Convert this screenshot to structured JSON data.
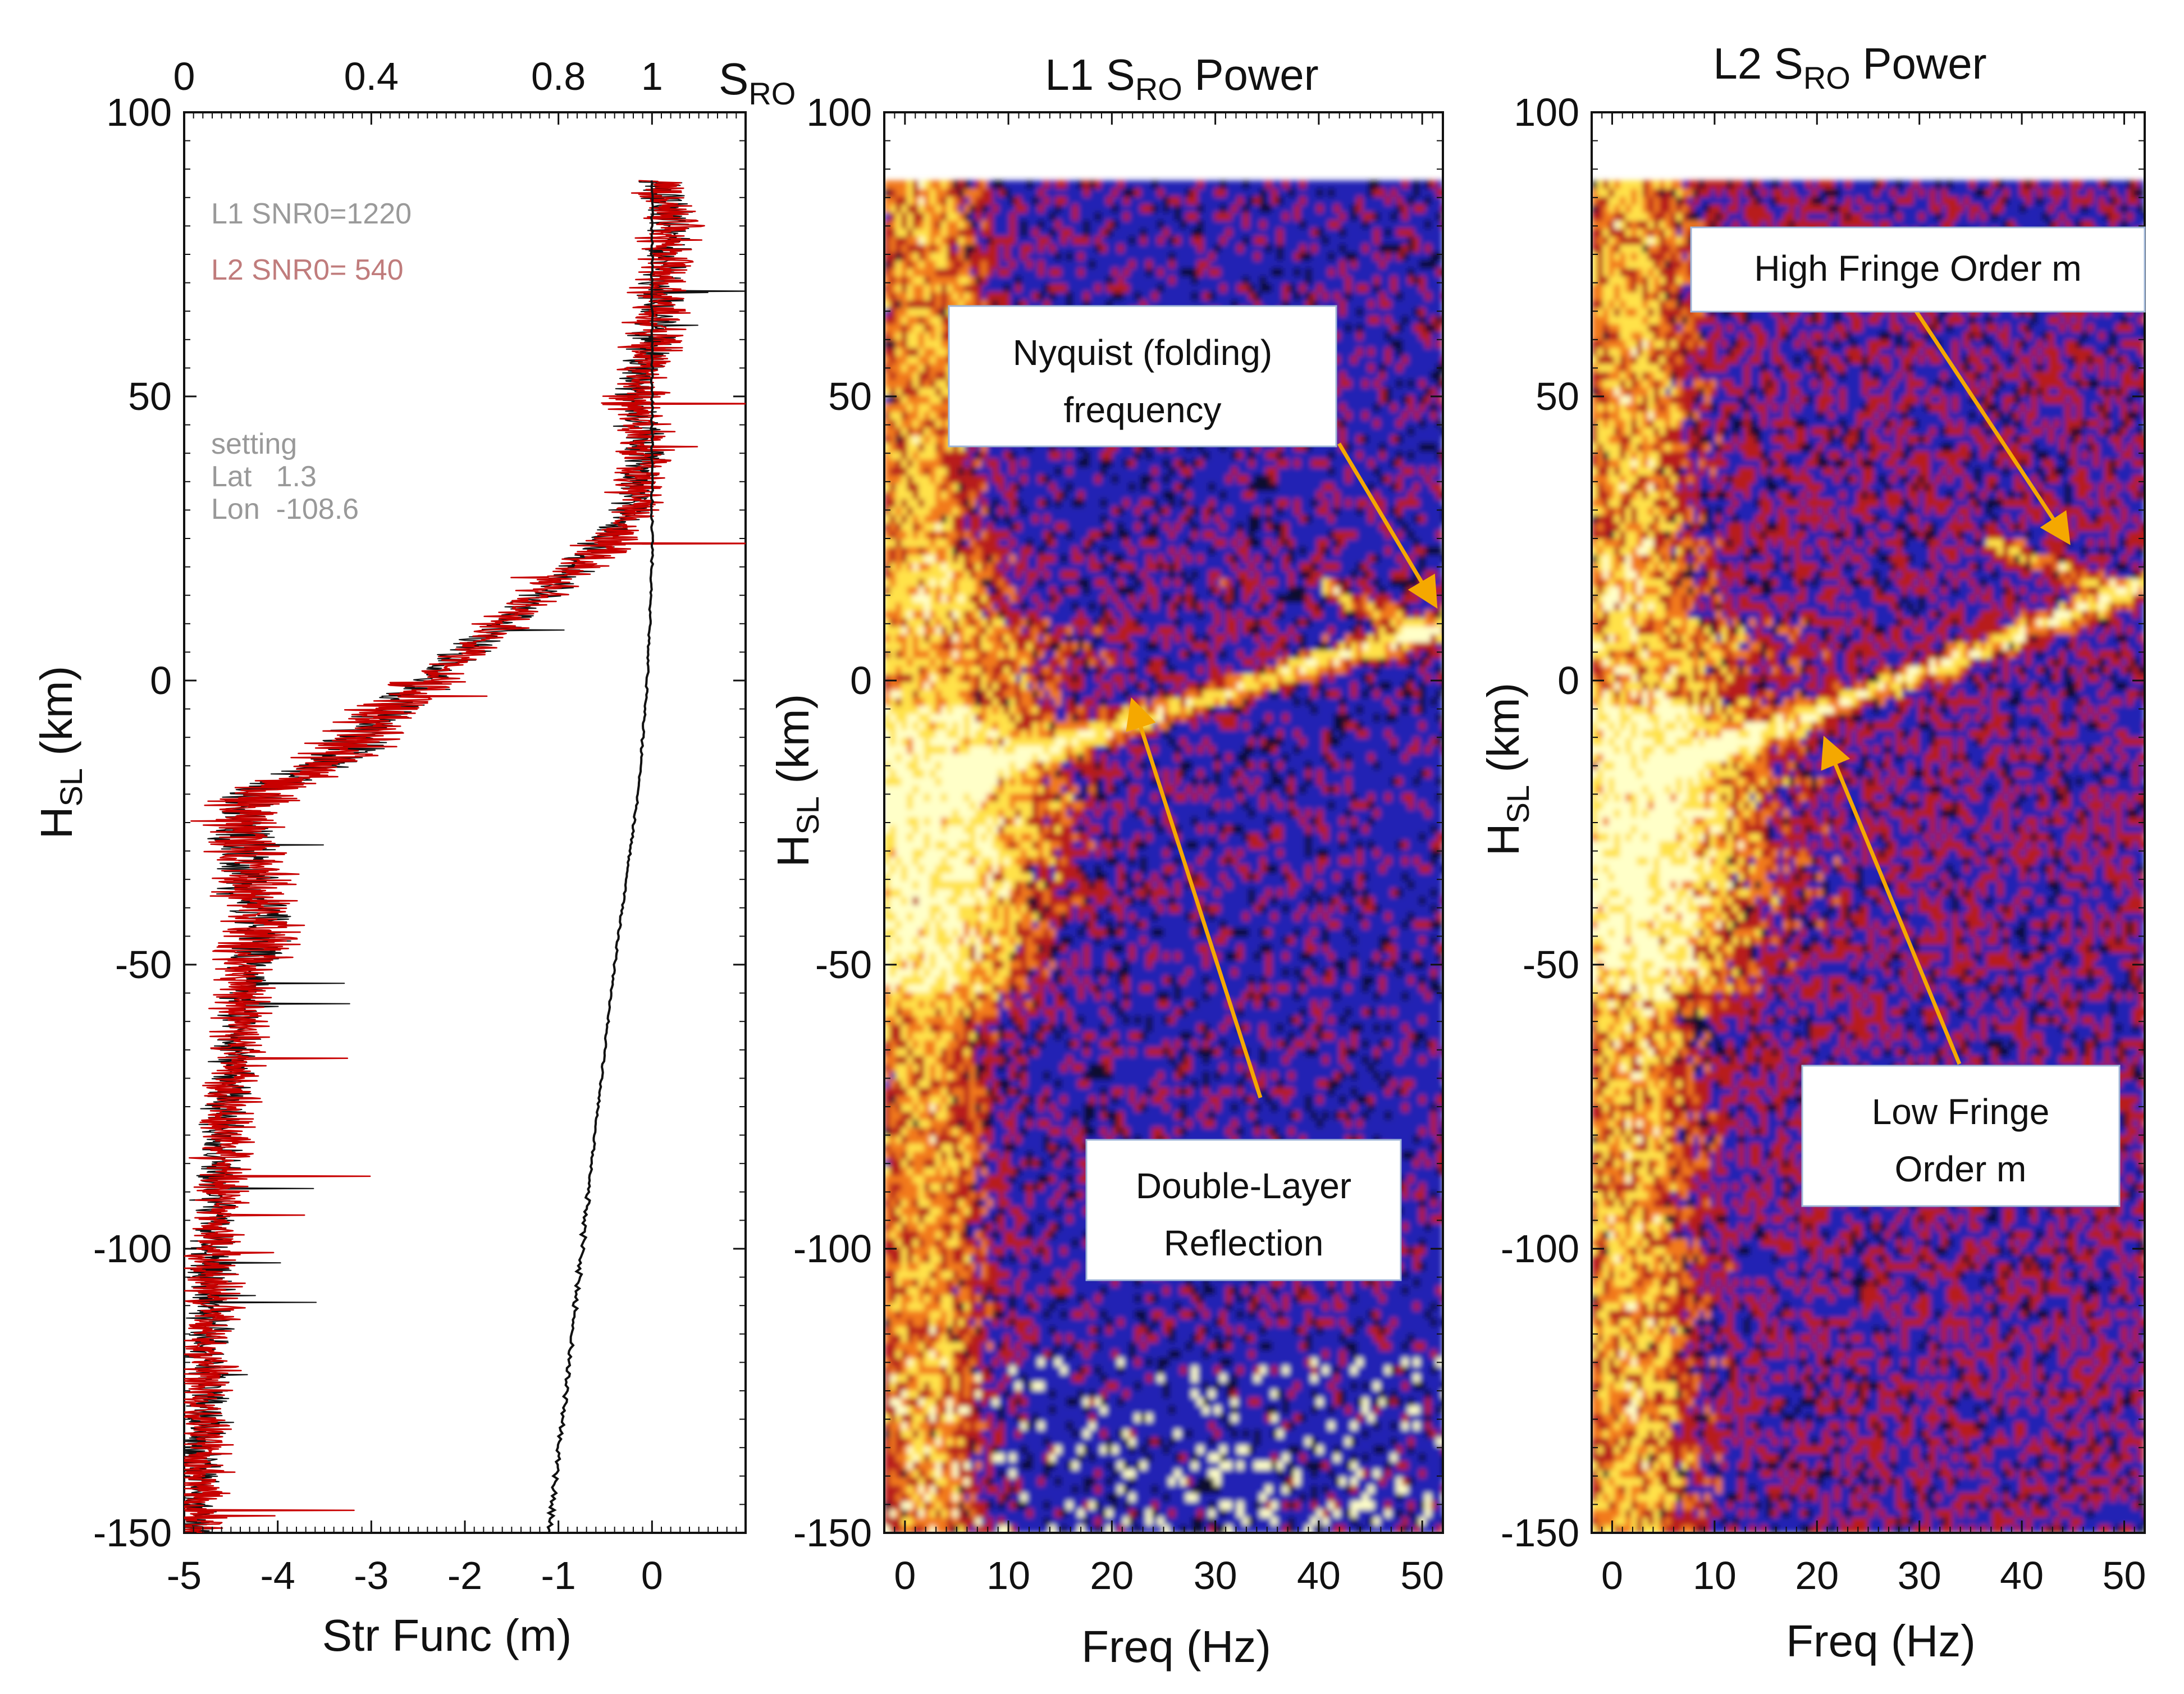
{
  "chart_data": [
    {
      "type": "line",
      "panel": "structure-function",
      "title": "",
      "xlabel": "Str Func (m)",
      "ylabel": "H_SL (km)",
      "ylabel_main": "H",
      "ylabel_sub": "SL",
      "ylabel_unit": " (km)",
      "xlim": [
        -5,
        1
      ],
      "ylim": [
        -150,
        100
      ],
      "xticks": [
        "-5",
        "-4",
        "-3",
        "-2",
        "-1",
        "0"
      ],
      "yticks": [
        "100",
        "50",
        "0",
        "-50",
        "-100",
        "-150"
      ],
      "top_axis": {
        "label_main": "S",
        "label_sub": "RO",
        "lim": [
          0,
          1.2
        ],
        "ticks": [
          "0",
          "0.4",
          "0.8",
          "1"
        ]
      },
      "legend": [
        "L1 SNR0=1220",
        "L2 SNR0= 540"
      ],
      "info_text": [
        "setting",
        "Lat   1.3",
        "Lon  -108.6"
      ],
      "series": [
        {
          "name": "L2 structure function",
          "color": "#c80000",
          "mean_profile": {
            "h": [
              -150,
              -140,
              -130,
              -120,
              -100,
              -80,
              -70,
              -60,
              -50,
              -45,
              -35,
              -25,
              -20,
              -15,
              -5,
              0,
              5,
              10,
              15,
              20,
              25,
              30,
              40,
              50,
              60,
              70,
              80,
              88
            ],
            "x": [
              -4.9,
              -4.85,
              -4.8,
              -4.75,
              -4.7,
              -4.6,
              -4.5,
              -4.4,
              -4.35,
              -4.2,
              -4.3,
              -4.4,
              -4.3,
              -3.5,
              -2.8,
              -2.4,
              -2.0,
              -1.6,
              -1.2,
              -0.8,
              -0.5,
              -0.2,
              -0.1,
              -0.2,
              0.0,
              0.1,
              0.2,
              0.1
            ]
          }
        },
        {
          "name": "L1 structure function",
          "color": "#111111",
          "mean_profile": "same as L2"
        },
        {
          "name": "S_RO",
          "color": "#111111",
          "axis": "top",
          "h": [
            -150,
            -100,
            -50,
            -20,
            0,
            20,
            40,
            88
          ],
          "s": [
            0.78,
            0.85,
            0.92,
            0.97,
            0.99,
            1.0,
            1.0,
            1.0
          ]
        }
      ]
    },
    {
      "type": "heatmap",
      "panel": "L1",
      "title": "L1 S_RO Power",
      "title_main": "L1 S",
      "title_sub": "RO",
      "title_tail": " Power",
      "xlabel": "Freq (Hz)",
      "ylabel": "H_SL (km)",
      "ylabel_main": "H",
      "ylabel_sub": "SL",
      "ylabel_unit": " (km)",
      "xlim": [
        -2,
        52
      ],
      "ylim": [
        -150,
        100
      ],
      "data_ylim": [
        -150,
        88
      ],
      "xticks": [
        "0",
        "10",
        "20",
        "30",
        "40",
        "50"
      ],
      "yticks": [
        "100",
        "50",
        "0",
        "-50",
        "-100",
        "-150"
      ],
      "features": {
        "low_band": {
          "freq": 2,
          "h_range": [
            -150,
            88
          ]
        },
        "diagonal_ridge": {
          "from": [
            0,
            -20
          ],
          "to": [
            50,
            8
          ]
        },
        "nyquist_fold": {
          "from": [
            40,
            16
          ],
          "to": [
            50,
            8
          ]
        }
      },
      "annotations": [
        {
          "id": "nyquist",
          "lines": [
            "Nyquist (folding)",
            "frequency"
          ],
          "arrow_to": [
            50,
            14
          ]
        },
        {
          "id": "double-layer",
          "lines": [
            "Double-Layer",
            "Reflection"
          ],
          "arrow_to": [
            22,
            -4
          ]
        }
      ]
    },
    {
      "type": "heatmap",
      "panel": "L2",
      "title": "L2 S_RO Power",
      "title_main": "L2 S",
      "title_sub": "RO",
      "title_tail": " Power",
      "xlabel": "Freq (Hz)",
      "ylabel": "H_SL (km)",
      "ylabel_main": "H",
      "ylabel_sub": "SL",
      "ylabel_unit": " (km)",
      "xlim": [
        -2,
        52
      ],
      "ylim": [
        -150,
        100
      ],
      "data_ylim": [
        -150,
        88
      ],
      "xticks": [
        "0",
        "10",
        "20",
        "30",
        "40",
        "50"
      ],
      "yticks": [
        "100",
        "50",
        "0",
        "-50",
        "-100",
        "-150"
      ],
      "features": {
        "low_band": {
          "freq": 2,
          "h_range": [
            -150,
            88
          ]
        },
        "diagonal_ridge": {
          "from": [
            0,
            -20
          ],
          "to": [
            50,
            15
          ]
        },
        "upper_fold": {
          "from": [
            36,
            24
          ],
          "to": [
            50,
            15
          ]
        }
      },
      "annotations": [
        {
          "id": "high-fringe",
          "lines": [
            "High Fringe Order m"
          ],
          "arrow_to": [
            44,
            24
          ]
        },
        {
          "id": "low-fringe",
          "lines": [
            "Low Fringe",
            "Order m"
          ],
          "arrow_to": [
            21,
            -11
          ]
        }
      ]
    }
  ],
  "colors": {
    "background_blue": "#2020b4",
    "deep": "#0a0a2e",
    "red": "#b81c1c",
    "orange": "#f27a1a",
    "yellow": "#ffe24a",
    "pale": "#ffffc8",
    "arrow": "#f5a800",
    "box_border": "#9fb6d8"
  }
}
